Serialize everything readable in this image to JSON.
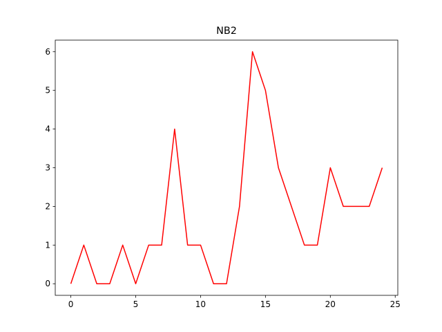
{
  "chart_data": {
    "type": "line",
    "title": "NB2",
    "xlabel": "",
    "ylabel": "",
    "x": [
      0,
      1,
      2,
      3,
      4,
      5,
      6,
      7,
      8,
      9,
      10,
      11,
      12,
      13,
      14,
      15,
      16,
      17,
      18,
      19,
      20,
      21,
      22,
      23,
      24
    ],
    "series": [
      {
        "values": [
          0,
          1,
          0,
          0,
          1,
          0,
          1,
          1,
          4,
          1,
          1,
          0,
          0,
          2,
          6,
          5,
          3,
          2,
          1,
          1,
          3,
          2,
          2,
          2,
          3
        ],
        "color": "#ff0000"
      }
    ],
    "xlim": [
      -1.2,
      25.2
    ],
    "ylim": [
      -0.3,
      6.3
    ],
    "xticks": [
      0,
      5,
      10,
      15,
      20,
      25
    ],
    "yticks": [
      0,
      1,
      2,
      3,
      4,
      5,
      6
    ],
    "grid": false,
    "legend": "none"
  }
}
